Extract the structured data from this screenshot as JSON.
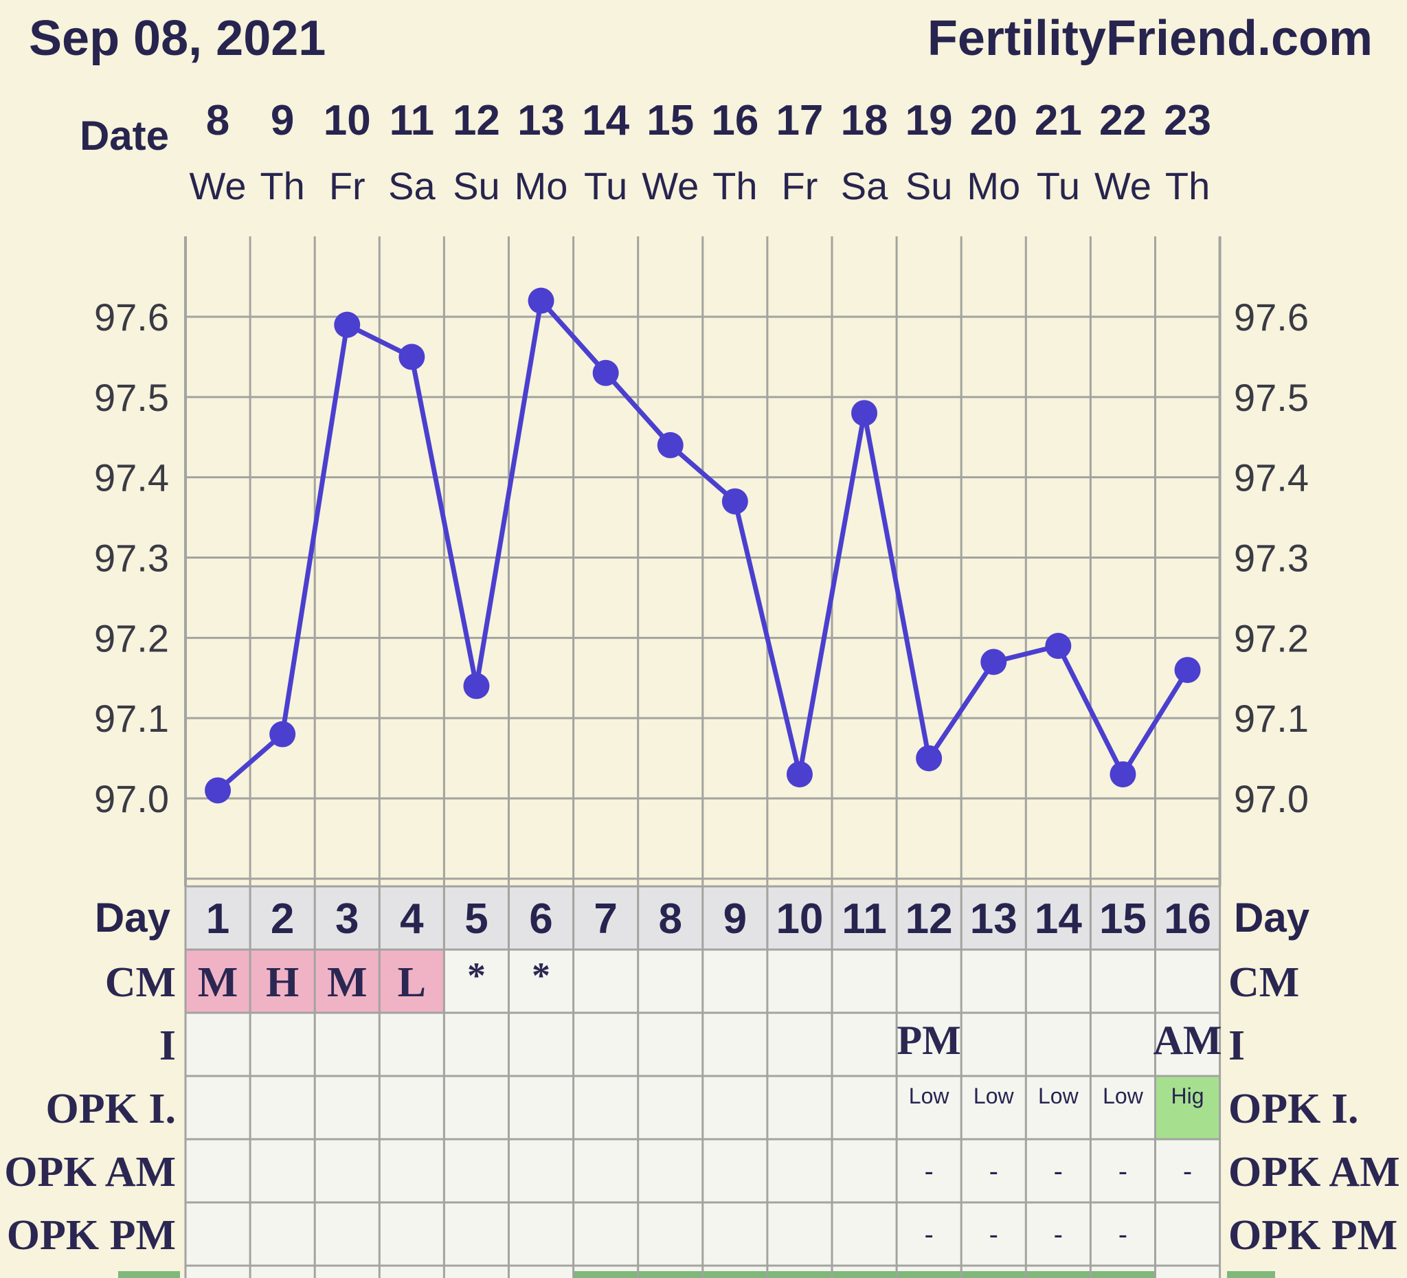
{
  "header": {
    "date": "Sep 08, 2021",
    "site": "FertilityFriend.com"
  },
  "row_labels": {
    "date": "Date",
    "day": "Day",
    "cm": "CM",
    "intercourse": "I",
    "opk_i": "OPK I.",
    "opk_am": "OPK AM",
    "opk_pm": "OPK PM"
  },
  "colors": {
    "page_bg": "#f7f3dc",
    "grid": "#a3a3a0",
    "line": "#4b3fcf",
    "text_dark": "#27244f",
    "day_row_bg": "#e3e3e5",
    "table_bg": "#f5f5f0",
    "cm_pink": "#f0b3c6",
    "opk_green": "#a6e08f",
    "band_green": "#7fb87a"
  },
  "chart_data": {
    "type": "line",
    "title": "",
    "xlabel": "",
    "ylabel": "",
    "dates": [
      "8",
      "9",
      "10",
      "11",
      "12",
      "13",
      "14",
      "15",
      "16",
      "17",
      "18",
      "19",
      "20",
      "21",
      "22",
      "23"
    ],
    "weekdays": [
      "We",
      "Th",
      "Fr",
      "Sa",
      "Su",
      "Mo",
      "Tu",
      "We",
      "Th",
      "Fr",
      "Sa",
      "Su",
      "Mo",
      "Tu",
      "We",
      "Th"
    ],
    "cycle_days": [
      "1",
      "2",
      "3",
      "4",
      "5",
      "6",
      "7",
      "8",
      "9",
      "10",
      "11",
      "12",
      "13",
      "14",
      "15",
      "16"
    ],
    "y_ticks": [
      "97.0",
      "97.1",
      "97.2",
      "97.3",
      "97.4",
      "97.5",
      "97.6"
    ],
    "ylim": [
      96.89,
      97.7
    ],
    "grid": true,
    "series": [
      {
        "values": [
          97.01,
          97.08,
          97.59,
          97.55,
          97.14,
          97.62,
          97.53,
          97.44,
          97.37,
          97.03,
          97.48,
          97.05,
          97.17,
          97.19,
          97.03,
          97.16
        ]
      }
    ]
  },
  "rows": {
    "cm": [
      "M",
      "H",
      "M",
      "L",
      "*",
      "*",
      "",
      "",
      "",
      "",
      "",
      "",
      "",
      "",
      "",
      ""
    ],
    "intercourse": [
      "",
      "",
      "",
      "",
      "",
      "",
      "",
      "",
      "",
      "",
      "",
      "PM",
      "",
      "",
      "",
      "AM"
    ],
    "opk_i": [
      "",
      "",
      "",
      "",
      "",
      "",
      "",
      "",
      "",
      "",
      "",
      "Low",
      "Low",
      "Low",
      "Low",
      "Hig"
    ],
    "opk_am": [
      "",
      "",
      "",
      "",
      "",
      "",
      "",
      "",
      "",
      "",
      "",
      "-",
      "-",
      "-",
      "-",
      "-"
    ],
    "opk_pm": [
      "",
      "",
      "",
      "",
      "",
      "",
      "",
      "",
      "",
      "",
      "",
      "-",
      "-",
      "-",
      "-",
      ""
    ]
  }
}
